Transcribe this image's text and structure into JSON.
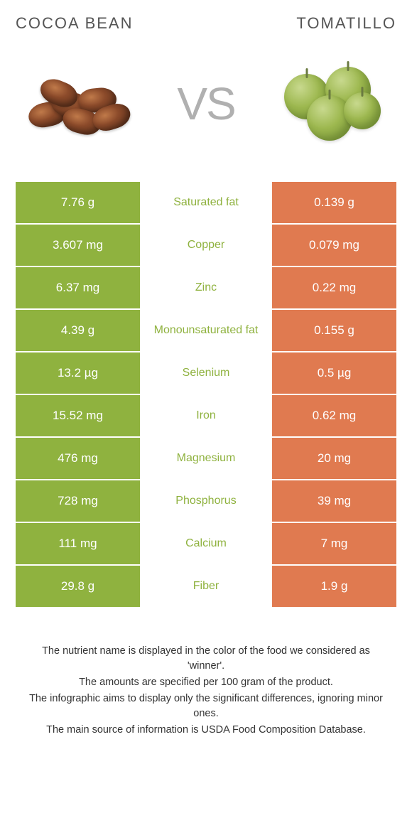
{
  "header": {
    "left_title": "COCOA BEAN",
    "right_title": "TOMATILLO"
  },
  "vs_label": "VS",
  "colors": {
    "left_cell": "#8fb23f",
    "right_cell": "#e07a50",
    "center_winner_left": "#8fb23f",
    "center_winner_right": "#e07a50",
    "row_bg": "#ffffff"
  },
  "rows": [
    {
      "left": "7.76 g",
      "label": "Saturated fat",
      "right": "0.139 g",
      "winner": "left"
    },
    {
      "left": "3.607 mg",
      "label": "Copper",
      "right": "0.079 mg",
      "winner": "left"
    },
    {
      "left": "6.37 mg",
      "label": "Zinc",
      "right": "0.22 mg",
      "winner": "left"
    },
    {
      "left": "4.39 g",
      "label": "Monounsaturated fat",
      "right": "0.155 g",
      "winner": "left"
    },
    {
      "left": "13.2 µg",
      "label": "Selenium",
      "right": "0.5 µg",
      "winner": "left"
    },
    {
      "left": "15.52 mg",
      "label": "Iron",
      "right": "0.62 mg",
      "winner": "left"
    },
    {
      "left": "476 mg",
      "label": "Magnesium",
      "right": "20 mg",
      "winner": "left"
    },
    {
      "left": "728 mg",
      "label": "Phosphorus",
      "right": "39 mg",
      "winner": "left"
    },
    {
      "left": "111 mg",
      "label": "Calcium",
      "right": "7 mg",
      "winner": "left"
    },
    {
      "left": "29.8 g",
      "label": "Fiber",
      "right": "1.9 g",
      "winner": "left"
    }
  ],
  "footer": {
    "line1": "The nutrient name is displayed in the color of the food we considered as 'winner'.",
    "line2": "The amounts are specified per 100 gram of the product.",
    "line3": "The infographic aims to display only the significant differences, ignoring minor ones.",
    "line4": "The main source of information is USDA Food Composition Database."
  }
}
